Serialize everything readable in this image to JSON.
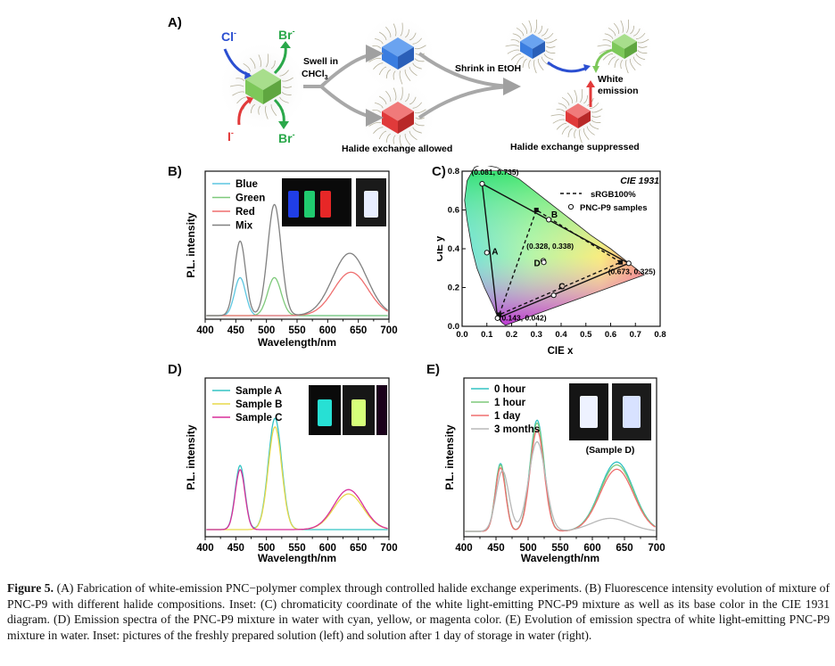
{
  "panelA": {
    "letter": "A)",
    "cl": "Cl",
    "br1": "Br",
    "i": "I",
    "br2": "Br",
    "sup": "-",
    "swell1": "Swell in",
    "swell2": "CHCl",
    "swell_sub": "3",
    "shrink": "Shrink in EtOH",
    "allowed": "Halide exchange allowed",
    "white1": "White",
    "white2": "emission",
    "suppressed": "Halide exchange suppressed"
  },
  "panelB": {
    "letter": "B)",
    "ylabel": "P.L. intensity",
    "xlabel": "Wavelength/nm",
    "legend": [
      "Blue",
      "Green",
      "Red",
      "Mix"
    ],
    "colors": [
      "#5bc6e0",
      "#7ec97a",
      "#ef6f6f",
      "#808080"
    ]
  },
  "panelC": {
    "letter": "C)",
    "title": "CIE 1931",
    "xlabel": "CIE x",
    "ylabel": "CIE y",
    "legend_srgb": "sRGB100%",
    "legend_pnc": "PNC-P9 samples",
    "pt_green": "(0.081, 0.735)",
    "pt_white": "(0.328, 0.338)",
    "pt_red": "(0.673, 0.325)",
    "pt_blue": "(0.143, 0.042)",
    "ptA": "A",
    "ptB": "B",
    "ptC": "C",
    "ptD": "D"
  },
  "panelD": {
    "letter": "D)",
    "ylabel": "P.L. intensity",
    "xlabel": "Wavelength/nm",
    "legend": [
      "Sample A",
      "Sample B",
      "Sample C"
    ],
    "colors": [
      "#33c3c3",
      "#e8d84a",
      "#d82f9a"
    ]
  },
  "panelE": {
    "letter": "E)",
    "ylabel": "P.L. intensity",
    "xlabel": "Wavelength/nm",
    "legend": [
      "0 hour",
      "1 hour",
      "1 day",
      "3 months"
    ],
    "colors": [
      "#33c3c3",
      "#7ec97a",
      "#ef6f6f",
      "#b8b8b8"
    ],
    "inset": "(Sample D)"
  },
  "caption": {
    "fig": "Figure 5.",
    "text": " (A) Fabrication of white-emission PNC−polymer complex through controlled halide exchange experiments. (B) Fluorescence intensity evolution of mixture of PNC-P9 with different halide compositions. Inset: (C) chromaticity coordinate of the white light-emitting PNC-P9 mixture as well as its base color in the CIE 1931 diagram. (D) Emission spectra of the PNC-P9 mixture in water with cyan, yellow, or magenta color. (E) Evolution of emission spectra of white light-emitting PNC-P9 mixture in water. Inset: pictures of the freshly prepared solution (left) and solution after 1 day of storage in water (right)."
  },
  "chart_data": [
    {
      "type": "line",
      "panel": "B",
      "xlabel": "Wavelength/nm",
      "ylabel": "P.L. intensity",
      "xlim": [
        400,
        700
      ],
      "x_ticks": [
        400,
        450,
        500,
        550,
        600,
        650,
        700
      ],
      "series": [
        {
          "name": "Blue",
          "peaks": [
            [
              457,
              0.28,
              9
            ]
          ]
        },
        {
          "name": "Green",
          "peaks": [
            [
              513,
              0.28,
              11
            ]
          ]
        },
        {
          "name": "Red",
          "peaks": [
            [
              638,
              0.32,
              28
            ]
          ]
        },
        {
          "name": "Mix",
          "peaks": [
            [
              457,
              0.55,
              9
            ],
            [
              513,
              0.82,
              11
            ],
            [
              636,
              0.46,
              28
            ]
          ]
        }
      ]
    },
    {
      "type": "scatter",
      "panel": "C",
      "title": "CIE 1931",
      "xlabel": "CIE x",
      "ylabel": "CIE y",
      "xlim": [
        0.0,
        0.8
      ],
      "ylim": [
        0.0,
        0.8
      ],
      "x_ticks": [
        0.0,
        0.1,
        0.2,
        0.3,
        0.4,
        0.5,
        0.6,
        0.7,
        0.8
      ],
      "y_ticks": [
        0.0,
        0.2,
        0.4,
        0.6,
        0.8
      ],
      "srgb": [
        [
          0.64,
          0.33
        ],
        [
          0.3,
          0.6
        ],
        [
          0.15,
          0.06
        ]
      ],
      "samples": [
        [
          0.081,
          0.735
        ],
        [
          0.673,
          0.325
        ],
        [
          0.143,
          0.042
        ],
        [
          0.328,
          0.338
        ]
      ],
      "labelled_points": [
        {
          "name": "A",
          "x": 0.1,
          "y": 0.38
        },
        {
          "name": "B",
          "x": 0.35,
          "y": 0.55
        },
        {
          "name": "C",
          "x": 0.37,
          "y": 0.16
        },
        {
          "name": "D",
          "x": 0.33,
          "y": 0.33
        }
      ]
    },
    {
      "type": "line",
      "panel": "D",
      "xlabel": "Wavelength/nm",
      "ylabel": "P.L. intensity",
      "xlim": [
        400,
        700
      ],
      "x_ticks": [
        400,
        450,
        500,
        550,
        600,
        650,
        700
      ],
      "series": [
        {
          "name": "Sample A",
          "peaks": [
            [
              457,
              0.45,
              8
            ],
            [
              514,
              0.78,
              11
            ]
          ]
        },
        {
          "name": "Sample B",
          "peaks": [
            [
              514,
              0.72,
              11
            ],
            [
              634,
              0.25,
              24
            ]
          ]
        },
        {
          "name": "Sample C",
          "peaks": [
            [
              457,
              0.42,
              8
            ],
            [
              634,
              0.28,
              24
            ]
          ]
        }
      ]
    },
    {
      "type": "line",
      "panel": "E",
      "xlabel": "Wavelength/nm",
      "ylabel": "P.L. intensity",
      "xlim": [
        400,
        700
      ],
      "x_ticks": [
        400,
        450,
        500,
        550,
        600,
        650,
        700
      ],
      "series": [
        {
          "name": "0 hour",
          "peaks": [
            [
              457,
              0.47,
              8
            ],
            [
              514,
              0.77,
              11
            ],
            [
              638,
              0.48,
              26
            ]
          ]
        },
        {
          "name": "1 hour",
          "peaks": [
            [
              457,
              0.46,
              8
            ],
            [
              514,
              0.75,
              11
            ],
            [
              638,
              0.46,
              26
            ]
          ]
        },
        {
          "name": "1 day",
          "peaks": [
            [
              457,
              0.44,
              8
            ],
            [
              514,
              0.7,
              11
            ],
            [
              638,
              0.43,
              26
            ]
          ]
        },
        {
          "name": "3 months",
          "peaks": [
            [
              460,
              0.42,
              10
            ],
            [
              514,
              0.62,
              13
            ],
            [
              628,
              0.09,
              30
            ]
          ]
        }
      ]
    }
  ]
}
